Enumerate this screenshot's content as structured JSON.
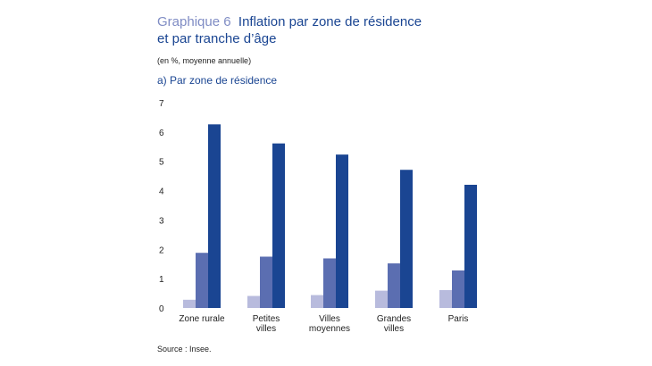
{
  "title_prefix": "Graphique 6",
  "title_line1": "Inflation par zone de résidence",
  "title_line2": "et par tranche d’âge",
  "unit_note": "(en %, moyenne annuelle)",
  "subtitle": "a)  Par zone de résidence",
  "source": "Source : Insee.",
  "chart_data": {
    "type": "bar",
    "categories": [
      [
        "Zone rurale"
      ],
      [
        "Petites",
        "villes"
      ],
      [
        "Villes",
        "moyennes"
      ],
      [
        "Grandes",
        "villes"
      ],
      [
        "Paris"
      ]
    ],
    "series": [
      {
        "values": [
          0.28,
          0.41,
          0.44,
          0.59,
          0.61
        ],
        "color": "#b8bbdd"
      },
      {
        "values": [
          1.88,
          1.75,
          1.69,
          1.52,
          1.28
        ],
        "color": "#5b6eb1"
      },
      {
        "values": [
          6.26,
          5.61,
          5.23,
          4.71,
          4.2
        ],
        "color": "#1a4592"
      }
    ],
    "ylim": [
      0,
      7
    ],
    "yticks": [
      "0",
      "1",
      "2",
      "3",
      "4",
      "5",
      "6",
      "7"
    ],
    "grid": false,
    "legend": "none"
  }
}
